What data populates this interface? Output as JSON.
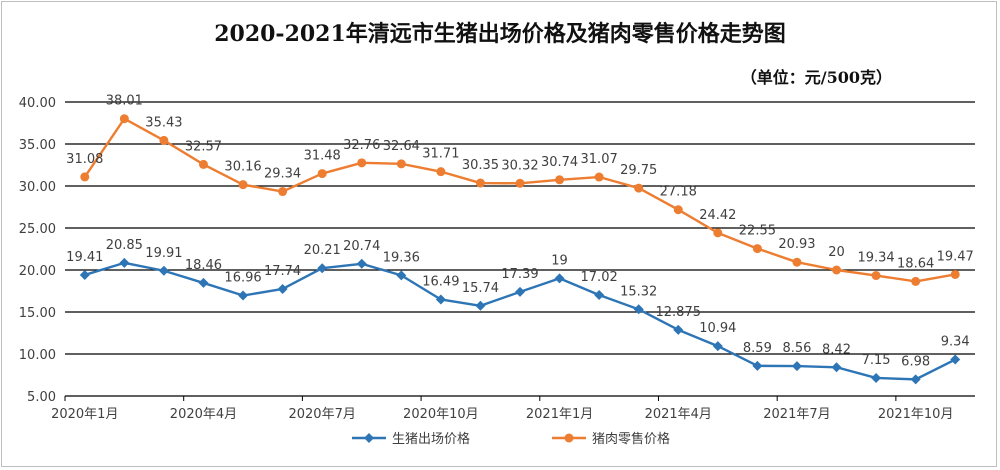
{
  "chart_data": {
    "type": "line",
    "title": "2020-2021年清远市生猪出场价格及猪肉零售价格走势图",
    "unit_note": "（单位：元/500克）",
    "ylim": [
      5,
      40
    ],
    "yticks": [
      "5.00",
      "10.00",
      "15.00",
      "20.00",
      "25.00",
      "30.00",
      "35.00",
      "40.00"
    ],
    "xtick_labels": [
      "2020年1月",
      "2020年4月",
      "2020年7月",
      "2020年10月",
      "2021年1月",
      "2021年4月",
      "2021年7月",
      "2021年10月"
    ],
    "xtick_indices": [
      0,
      3,
      6,
      9,
      12,
      15,
      18,
      21
    ],
    "categories": [
      "2020年1月",
      "2020年2月",
      "2020年3月",
      "2020年4月",
      "2020年5月",
      "2020年6月",
      "2020年7月",
      "2020年8月",
      "2020年9月",
      "2020年10月",
      "2020年11月",
      "2020年12月",
      "2021年1月",
      "2021年2月",
      "2021年3月",
      "2021年4月",
      "2021年5月",
      "2021年6月",
      "2021年7月",
      "2021年8月",
      "2021年9月",
      "2021年10月",
      "2021年11月"
    ],
    "grid": true,
    "legend_position": "bottom",
    "series": [
      {
        "name": "生猪出场价格",
        "color": "#2e75b6",
        "marker": "diamond",
        "values": [
          19.41,
          20.85,
          19.91,
          18.46,
          16.96,
          17.74,
          20.21,
          20.74,
          19.36,
          16.49,
          15.74,
          17.39,
          19,
          17.02,
          15.32,
          12.875,
          10.94,
          8.59,
          8.56,
          8.42,
          7.15,
          6.98,
          9.34
        ]
      },
      {
        "name": "猪肉零售价格",
        "color": "#ed7d31",
        "marker": "circle",
        "values": [
          31.08,
          38.01,
          35.43,
          32.57,
          30.16,
          29.34,
          31.48,
          32.76,
          32.64,
          31.71,
          30.35,
          30.32,
          30.74,
          31.07,
          29.75,
          27.18,
          24.42,
          22.55,
          20.93,
          20,
          19.34,
          18.64,
          19.47
        ]
      }
    ]
  }
}
